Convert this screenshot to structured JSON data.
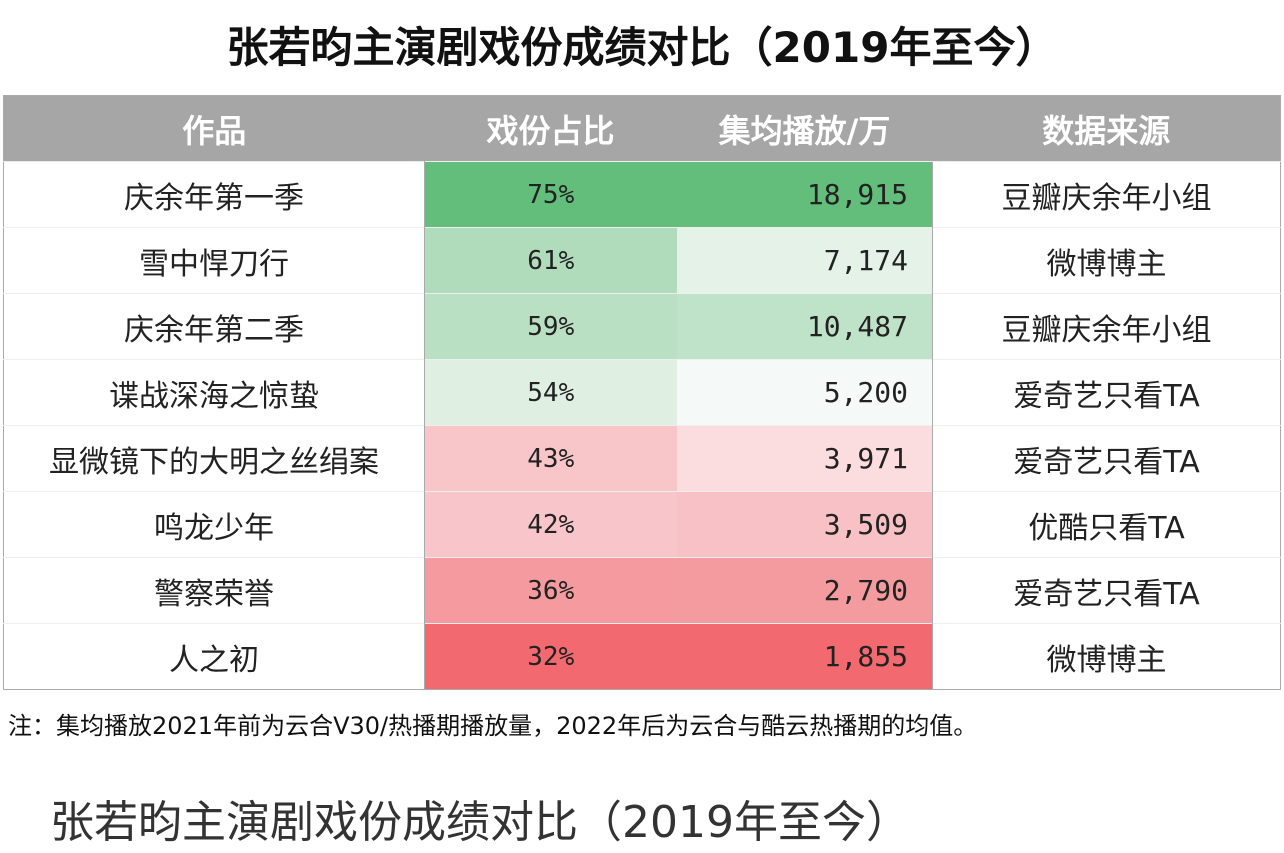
{
  "title": "张若昀主演剧戏份成绩对比（2019年至今）",
  "table": {
    "header": [
      "作品",
      "戏份占比",
      "集均播放/万",
      "数据来源"
    ],
    "rows": [
      [
        "庆余年第一季",
        "75%",
        "18,915",
        "豆瓣庆余年小组"
      ],
      [
        "雪中悍刀行",
        "61%",
        "7,174",
        "微博博主"
      ],
      [
        "庆余年第二季",
        "59%",
        "10,487",
        "豆瓣庆余年小组"
      ],
      [
        "谍战深海之惊蛰",
        "54%",
        "5,200",
        "爱奇艺只看TA"
      ],
      [
        "显微镜下的大明之丝绢案",
        "43%",
        "3,971",
        "爱奇艺只看TA"
      ],
      [
        "鸣龙少年",
        "42%",
        "3,509",
        "优酷只看TA"
      ],
      [
        "警察荣誉",
        "36%",
        "2,790",
        "爱奇艺只看TA"
      ],
      [
        "人之初",
        "32%",
        "1,855",
        "微博博主"
      ]
    ]
  },
  "note": "注：集均播放2021年前为云合V30/热播期播放量，2022年后为云合与酷云热播期的均值。",
  "caption": "张若昀主演剧戏份成绩对比（2019年至今）"
}
